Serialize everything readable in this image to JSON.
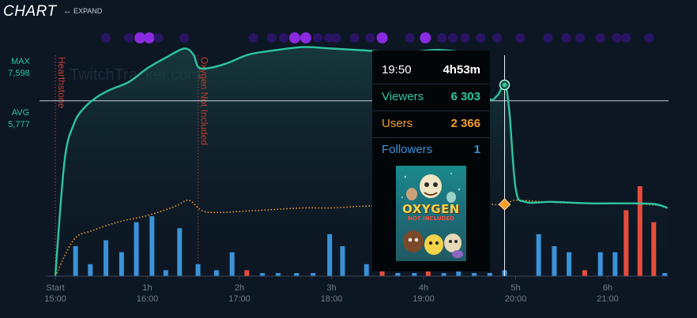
{
  "header": {
    "title": "CHART",
    "expand_icon": "horizontal-arrows-icon",
    "expand_label": "EXPAND"
  },
  "axis": {
    "max_label": "MAX",
    "max_value": "7,598",
    "avg_label": "AVG",
    "avg_value": "5,777",
    "duration_ticks": [
      "Start",
      "1h",
      "2h",
      "3h",
      "4h",
      "5h",
      "6h"
    ],
    "time_ticks": [
      "15:00",
      "16:00",
      "17:00",
      "18:00",
      "19:00",
      "20:00",
      "21:00"
    ]
  },
  "watermark": "TwitchTracker.com",
  "game_markers": [
    {
      "name": "Hearthstone",
      "time_h": 0.0
    },
    {
      "name": "Oxygen Not Included",
      "time_h": 1.55
    }
  ],
  "tooltip": {
    "time": "19:50",
    "duration": "4h53m",
    "rows": [
      {
        "label": "Viewers",
        "value": "6 303"
      },
      {
        "label": "Users",
        "value": "2 366"
      },
      {
        "label": "Followers",
        "value": "1"
      }
    ],
    "cover_title": "OXYGEN",
    "cover_subtitle": "NOT INCLUDED",
    "hover_time_h": 4.88
  },
  "colors": {
    "background": "#0d1724",
    "viewers": "#2ec4a0",
    "users": "#f39c27",
    "followers": "#3a93d8",
    "unfollows": "#e74c3c",
    "marker": "#c0392b",
    "dots_light": "#8a2be2",
    "dots_dark": "#2f1470",
    "tooltip_bg": "#030609"
  },
  "chart_data": {
    "type": "line",
    "x_unit": "hours since stream start",
    "xlim": [
      0,
      6.75
    ],
    "ylim": [
      0,
      7800
    ],
    "viewers": {
      "name": "Viewers",
      "x": [
        0,
        0.1,
        0.2,
        0.3,
        0.45,
        0.6,
        0.8,
        1.0,
        1.2,
        1.4,
        1.5,
        1.55,
        1.65,
        1.85,
        2.1,
        2.4,
        2.7,
        3.0,
        3.3,
        3.6,
        3.9,
        4.2,
        4.5,
        4.7,
        4.8,
        4.88,
        4.93,
        5.0,
        5.1,
        5.4,
        5.8,
        6.2,
        6.5,
        6.65
      ],
      "y": [
        0,
        3800,
        5000,
        5500,
        5900,
        6150,
        6400,
        6850,
        7200,
        7500,
        7300,
        6900,
        6850,
        7000,
        7300,
        7450,
        7550,
        7500,
        7450,
        7400,
        7400,
        7450,
        7200,
        5900,
        5950,
        6303,
        5500,
        2900,
        2450,
        2450,
        2400,
        2400,
        2380,
        2250
      ]
    },
    "users": {
      "name": "Users",
      "x": [
        0,
        0.2,
        0.4,
        0.7,
        1.0,
        1.3,
        1.45,
        1.6,
        1.8,
        2.1,
        2.4,
        2.7,
        3.0,
        3.3,
        3.6,
        3.9,
        4.2,
        4.5,
        4.7,
        4.88,
        5.0,
        5.3,
        5.7,
        6.1,
        6.5,
        6.65
      ],
      "y": [
        0,
        1200,
        1500,
        1800,
        2000,
        2300,
        2500,
        2150,
        2100,
        2150,
        2200,
        2250,
        2250,
        2300,
        2330,
        2350,
        2350,
        2360,
        2366,
        2366,
        2500,
        2450,
        2400,
        2400,
        2350,
        2250
      ]
    },
    "bars": {
      "x": [
        0.22,
        0.38,
        0.55,
        0.72,
        0.88,
        1.05,
        1.2,
        1.35,
        1.55,
        1.75,
        1.92,
        2.08,
        2.25,
        2.42,
        2.62,
        2.8,
        2.98,
        3.12,
        3.38,
        3.55,
        3.72,
        3.9,
        4.05,
        4.22,
        4.38,
        4.55,
        4.72,
        4.88,
        5.25,
        5.42,
        5.58,
        5.75,
        5.92,
        6.08,
        6.2,
        6.35,
        6.5,
        6.62
      ],
      "counts": [
        5,
        2,
        6,
        4,
        9,
        10,
        1,
        8,
        2,
        1,
        4,
        1,
        0,
        0,
        0,
        0,
        7,
        5,
        2,
        1,
        0,
        0,
        1,
        0,
        1,
        0,
        0,
        1,
        7,
        5,
        4,
        1,
        4,
        4,
        11,
        15,
        9,
        0
      ],
      "unfollow": [
        false,
        false,
        false,
        false,
        false,
        false,
        false,
        false,
        false,
        false,
        false,
        true,
        false,
        false,
        false,
        false,
        false,
        false,
        false,
        true,
        false,
        false,
        true,
        false,
        false,
        false,
        false,
        false,
        false,
        false,
        false,
        true,
        false,
        false,
        true,
        true,
        true,
        false
      ]
    },
    "max_viewers": 7598,
    "avg_viewers": 5777,
    "grid": false,
    "legend": "none"
  }
}
